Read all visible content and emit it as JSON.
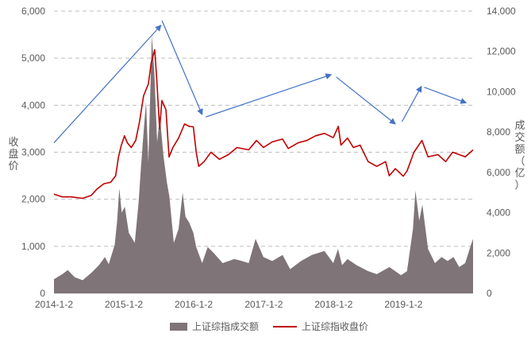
{
  "chart_data": {
    "type": "area+line",
    "colors": {
      "volume": "#7f7477",
      "close": "#c00000",
      "arrow": "#4472c4",
      "grid": "#bfbfbf"
    },
    "axes": {
      "x": {
        "range": [
          "2014-01-02",
          "2019-12-31"
        ],
        "ticks": [
          "2014-1-2",
          "2015-1-2",
          "2016-1-2",
          "2017-1-2",
          "2018-1-2",
          "2019-1-2"
        ]
      },
      "y_left": {
        "label": "收盘价",
        "range": [
          0,
          6000
        ],
        "ticks": [
          "0",
          "1,000",
          "2,000",
          "3,000",
          "4,000",
          "5,000",
          "6,000"
        ]
      },
      "y_right": {
        "label": "成交额（亿）",
        "range": [
          0,
          14000
        ],
        "ticks": [
          "0",
          "2,000",
          "4,000",
          "6,000",
          "8,000",
          "10,000",
          "12,000",
          "14,000"
        ]
      },
      "grid": "horizontal dashed"
    },
    "legend": {
      "position": "bottom",
      "items": [
        {
          "name": "上证综指成交额",
          "kind": "area",
          "color": "#7f7477"
        },
        {
          "name": "上证综指收盘价",
          "kind": "line",
          "color": "#c00000"
        }
      ]
    },
    "series": [
      {
        "name": "上证综指收盘价",
        "axis": "left",
        "points": [
          [
            "2014-01-02",
            2110
          ],
          [
            "2014-02-15",
            2050
          ],
          [
            "2014-04-01",
            2050
          ],
          [
            "2014-06-01",
            2020
          ],
          [
            "2014-07-15",
            2080
          ],
          [
            "2014-08-15",
            2220
          ],
          [
            "2014-09-20",
            2330
          ],
          [
            "2014-10-25",
            2360
          ],
          [
            "2014-11-20",
            2500
          ],
          [
            "2014-12-05",
            2900
          ],
          [
            "2014-12-20",
            3150
          ],
          [
            "2015-01-05",
            3350
          ],
          [
            "2015-01-20",
            3200
          ],
          [
            "2015-02-10",
            3100
          ],
          [
            "2015-03-05",
            3250
          ],
          [
            "2015-03-25",
            3650
          ],
          [
            "2015-04-15",
            4200
          ],
          [
            "2015-05-10",
            4450
          ],
          [
            "2015-05-25",
            4900
          ],
          [
            "2015-06-12",
            5178
          ],
          [
            "2015-06-22",
            4600
          ],
          [
            "2015-07-08",
            3500
          ],
          [
            "2015-07-20",
            4100
          ],
          [
            "2015-08-10",
            3900
          ],
          [
            "2015-08-26",
            2900
          ],
          [
            "2015-09-15",
            3100
          ],
          [
            "2015-10-15",
            3300
          ],
          [
            "2015-11-15",
            3600
          ],
          [
            "2015-12-10",
            3550
          ],
          [
            "2015-12-31",
            3540
          ],
          [
            "2016-01-15",
            3000
          ],
          [
            "2016-01-28",
            2700
          ],
          [
            "2016-02-25",
            2800
          ],
          [
            "2016-04-01",
            3000
          ],
          [
            "2016-05-15",
            2850
          ],
          [
            "2016-07-01",
            2950
          ],
          [
            "2016-08-15",
            3100
          ],
          [
            "2016-10-15",
            3050
          ],
          [
            "2016-11-25",
            3250
          ],
          [
            "2016-12-31",
            3100
          ],
          [
            "2017-02-15",
            3220
          ],
          [
            "2017-04-10",
            3280
          ],
          [
            "2017-05-10",
            3080
          ],
          [
            "2017-06-30",
            3200
          ],
          [
            "2017-08-15",
            3250
          ],
          [
            "2017-09-30",
            3350
          ],
          [
            "2017-11-15",
            3400
          ],
          [
            "2017-12-31",
            3310
          ],
          [
            "2018-01-26",
            3550
          ],
          [
            "2018-02-09",
            3150
          ],
          [
            "2018-03-15",
            3300
          ],
          [
            "2018-04-15",
            3100
          ],
          [
            "2018-05-20",
            3150
          ],
          [
            "2018-07-01",
            2800
          ],
          [
            "2018-08-15",
            2700
          ],
          [
            "2018-09-30",
            2800
          ],
          [
            "2018-10-19",
            2500
          ],
          [
            "2018-11-20",
            2650
          ],
          [
            "2018-12-31",
            2490
          ],
          [
            "2019-01-20",
            2600
          ],
          [
            "2019-02-25",
            3000
          ],
          [
            "2019-04-08",
            3250
          ],
          [
            "2019-05-10",
            2900
          ],
          [
            "2019-06-30",
            2950
          ],
          [
            "2019-08-10",
            2800
          ],
          [
            "2019-09-15",
            3000
          ],
          [
            "2019-10-20",
            2950
          ],
          [
            "2019-11-20",
            2900
          ],
          [
            "2019-12-31",
            3050
          ]
        ]
      },
      {
        "name": "上证综指成交额",
        "axis": "right",
        "points": [
          [
            "2014-01-02",
            700
          ],
          [
            "2014-02-15",
            950
          ],
          [
            "2014-03-15",
            1150
          ],
          [
            "2014-04-20",
            800
          ],
          [
            "2014-06-01",
            650
          ],
          [
            "2014-07-20",
            1050
          ],
          [
            "2014-08-25",
            1400
          ],
          [
            "2014-09-25",
            1800
          ],
          [
            "2014-10-15",
            1450
          ],
          [
            "2014-11-15",
            2400
          ],
          [
            "2014-11-28",
            3600
          ],
          [
            "2014-12-09",
            5200
          ],
          [
            "2014-12-22",
            4000
          ],
          [
            "2015-01-07",
            4300
          ],
          [
            "2015-01-28",
            3000
          ],
          [
            "2015-02-28",
            2500
          ],
          [
            "2015-03-20",
            4500
          ],
          [
            "2015-04-01",
            6200
          ],
          [
            "2015-04-15",
            8000
          ],
          [
            "2015-04-28",
            9500
          ],
          [
            "2015-05-10",
            6500
          ],
          [
            "2015-05-28",
            12800
          ],
          [
            "2015-06-10",
            11000
          ],
          [
            "2015-06-25",
            7500
          ],
          [
            "2015-07-09",
            8800
          ],
          [
            "2015-07-28",
            6800
          ],
          [
            "2015-08-15",
            5500
          ],
          [
            "2015-08-28",
            4800
          ],
          [
            "2015-09-20",
            2500
          ],
          [
            "2015-10-15",
            3200
          ],
          [
            "2015-11-05",
            5000
          ],
          [
            "2015-11-20",
            3800
          ],
          [
            "2015-12-10",
            3500
          ],
          [
            "2015-12-31",
            3000
          ],
          [
            "2016-01-15",
            2300
          ],
          [
            "2016-02-15",
            1500
          ],
          [
            "2016-03-15",
            2300
          ],
          [
            "2016-04-15",
            2000
          ],
          [
            "2016-06-01",
            1500
          ],
          [
            "2016-08-01",
            1700
          ],
          [
            "2016-09-10",
            1600
          ],
          [
            "2016-10-15",
            1500
          ],
          [
            "2016-11-20",
            2700
          ],
          [
            "2016-12-31",
            1800
          ],
          [
            "2017-02-15",
            1600
          ],
          [
            "2017-04-10",
            1900
          ],
          [
            "2017-05-20",
            1200
          ],
          [
            "2017-07-15",
            1600
          ],
          [
            "2017-09-10",
            1900
          ],
          [
            "2017-11-15",
            2100
          ],
          [
            "2017-12-31",
            1500
          ],
          [
            "2018-01-25",
            2200
          ],
          [
            "2018-02-15",
            1400
          ],
          [
            "2018-03-15",
            1700
          ],
          [
            "2018-05-01",
            1400
          ],
          [
            "2018-07-01",
            1100
          ],
          [
            "2018-08-15",
            950
          ],
          [
            "2018-10-20",
            1300
          ],
          [
            "2018-12-20",
            900
          ],
          [
            "2019-01-20",
            1100
          ],
          [
            "2019-02-20",
            3200
          ],
          [
            "2019-03-05",
            5100
          ],
          [
            "2019-03-25",
            3600
          ],
          [
            "2019-04-10",
            4400
          ],
          [
            "2019-05-10",
            2200
          ],
          [
            "2019-06-15",
            1500
          ],
          [
            "2019-07-20",
            1800
          ],
          [
            "2019-08-20",
            1600
          ],
          [
            "2019-09-20",
            1800
          ],
          [
            "2019-10-20",
            1300
          ],
          [
            "2019-11-20",
            1500
          ],
          [
            "2019-12-20",
            2400
          ],
          [
            "2019-12-31",
            2700
          ]
        ]
      }
    ],
    "trend_arrows": [
      {
        "from": [
          "2014-01-02",
          3200
        ],
        "to": [
          "2015-07-15",
          5700
        ]
      },
      {
        "from": [
          "2015-07-20",
          5800
        ],
        "to": [
          "2016-02-15",
          3800
        ]
      },
      {
        "from": [
          "2016-03-05",
          3750
        ],
        "to": [
          "2017-12-20",
          4650
        ]
      },
      {
        "from": [
          "2018-01-15",
          4600
        ],
        "to": [
          "2018-11-20",
          3600
        ]
      },
      {
        "from": [
          "2018-12-25",
          3650
        ],
        "to": [
          "2019-04-05",
          4400
        ]
      },
      {
        "from": [
          "2019-04-20",
          4380
        ],
        "to": [
          "2019-11-25",
          4050
        ]
      }
    ]
  }
}
